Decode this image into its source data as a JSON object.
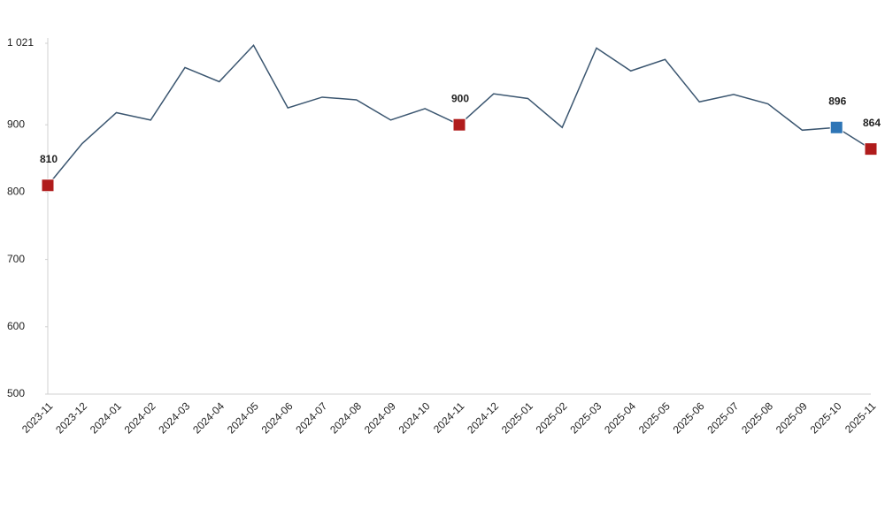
{
  "chart_data": {
    "type": "line",
    "categories": [
      "2023-11",
      "2023-12",
      "2024-01",
      "2024-02",
      "2024-03",
      "2024-04",
      "2024-05",
      "2024-06",
      "2024-07",
      "2024-08",
      "2024-09",
      "2024-10",
      "2024-11",
      "2024-12",
      "2025-01",
      "2025-02",
      "2025-03",
      "2025-04",
      "2025-05",
      "2025-06",
      "2025-07",
      "2025-08",
      "2025-09",
      "2025-10",
      "2025-11"
    ],
    "values": [
      810,
      872,
      918,
      907,
      985,
      964,
      1018,
      925,
      941,
      937,
      907,
      924,
      900,
      946,
      939,
      896,
      1014,
      980,
      997,
      934,
      945,
      931,
      892,
      896,
      864
    ],
    "color": "#3b5670",
    "ylim": [
      500,
      1021
    ],
    "yticks": [
      500,
      600,
      700,
      800,
      900,
      {
        "value": 1021,
        "label": "1 021"
      }
    ],
    "markers": [
      {
        "index": 0,
        "color": "#b01c1c"
      },
      {
        "index": 12,
        "color": "#b01c1c"
      },
      {
        "index": 23,
        "color": "#2e75b6"
      },
      {
        "index": 24,
        "color": "#b01c1c"
      }
    ],
    "grid": false
  }
}
